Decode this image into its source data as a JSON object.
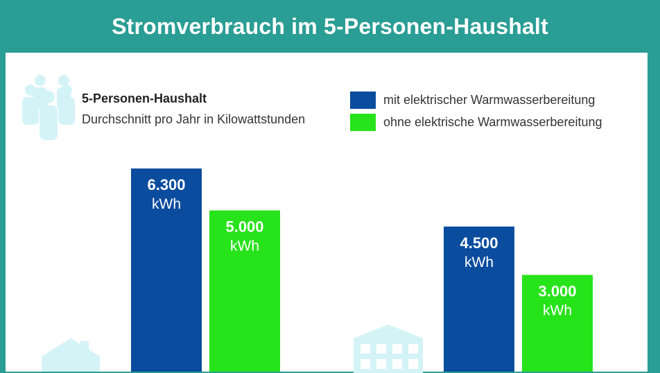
{
  "header": {
    "title": "Stromverbrauch im 5-Personen-Haushalt"
  },
  "intro": {
    "heading": "5-Personen-Haushalt",
    "description": "Durchschnitt pro Jahr in Kilowattstunden"
  },
  "icons": {
    "people": "people-group-icon",
    "house": "house-icon",
    "building": "apartment-building-icon"
  },
  "colors": {
    "header_bg": "#2a9d94",
    "series_blue": "#0a4c9d",
    "series_green": "#27e31a",
    "icon_light": "#d4f3f7"
  },
  "chart_data": {
    "type": "bar",
    "categories": [
      "",
      ""
    ],
    "series": [
      {
        "name": "mit elektrischer Warmwasserbereitung",
        "color": "#0a4c9d",
        "values": [
          6300,
          4500
        ],
        "labels": [
          "6.300",
          "4.500"
        ]
      },
      {
        "name": "ohne elektrische Warmwasserbereitung",
        "color": "#27e31a",
        "values": [
          5000,
          3000
        ],
        "labels": [
          "5.000",
          "3.000"
        ]
      }
    ],
    "unit": "kWh",
    "legend_position": "top-right",
    "grid": false
  }
}
